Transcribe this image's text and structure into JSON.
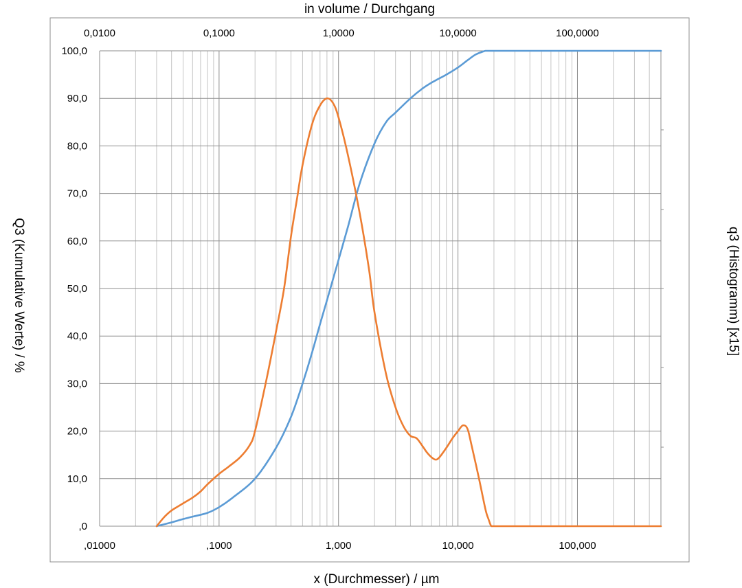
{
  "chart_data": {
    "type": "line",
    "title": "in volume / Durchgang",
    "xlabel": "x (Durchmesser) / µm",
    "ylabel": "Q3 (Kumulative Werte) / %",
    "y2label": "q3 (Histogramm) [x15]",
    "x_scale": "log",
    "xlim": [
      0.01,
      500
    ],
    "ylim": [
      0,
      100
    ],
    "grid": true,
    "legend": "none",
    "x_ticks": [
      0.01,
      0.1,
      1,
      10,
      100
    ],
    "x_tick_labels_bottom": [
      ",01000",
      ",1000",
      "1,000",
      "10,000",
      "100,000"
    ],
    "x_tick_labels_top": [
      "0,0100",
      "0,1000",
      "1,0000",
      "10,0000",
      "100,0000"
    ],
    "y_ticks": [
      0,
      10,
      20,
      30,
      40,
      50,
      60,
      70,
      80,
      90,
      100
    ],
    "y_tick_labels": [
      ",0",
      "10,0",
      "20,0",
      "30,0",
      "40,0",
      "50,0",
      "60,0",
      "70,0",
      "80,0",
      "90,0",
      "100,0"
    ],
    "colors": {
      "Q3": "#5b9bd5",
      "q3": "#ed7d31",
      "grid": "#8c8c8c"
    },
    "series": [
      {
        "key": "Q3",
        "axis": "left",
        "x": [
          0.03,
          0.04,
          0.05,
          0.06,
          0.08,
          0.1,
          0.13,
          0.2,
          0.3,
          0.4,
          0.5,
          0.6,
          0.7,
          0.8,
          0.9,
          1.0,
          1.2,
          1.5,
          2.0,
          2.5,
          3.0,
          4.0,
          5.0,
          6.0,
          8.0,
          10.0,
          12.0,
          14.0,
          16.0,
          17.0,
          18.0,
          20.0,
          30.0,
          50.0,
          100.0,
          200.0,
          500.0
        ],
        "values": [
          0,
          0.8,
          1.5,
          2.0,
          2.8,
          4.0,
          6.0,
          10.0,
          16.5,
          23.0,
          30.0,
          36.5,
          42.5,
          47.5,
          52.0,
          56.0,
          63.0,
          72.0,
          80.5,
          85.0,
          87.0,
          90.0,
          92.0,
          93.3,
          95.0,
          96.5,
          98.0,
          99.2,
          99.8,
          100.0,
          100.0,
          100.0,
          100.0,
          100.0,
          100.0,
          100.0,
          100.0
        ]
      },
      {
        "key": "q3",
        "axis": "left",
        "x": [
          0.03,
          0.035,
          0.04,
          0.05,
          0.06,
          0.07,
          0.08,
          0.1,
          0.12,
          0.15,
          0.18,
          0.2,
          0.25,
          0.3,
          0.35,
          0.4,
          0.45,
          0.5,
          0.6,
          0.7,
          0.8,
          0.9,
          1.0,
          1.2,
          1.5,
          1.8,
          2.0,
          2.5,
          3.0,
          3.5,
          4.0,
          4.5,
          5.0,
          5.5,
          6.0,
          6.5,
          7.0,
          8.0,
          9.0,
          10.0,
          11.0,
          12.0,
          13.0,
          15.0,
          17.0,
          18.0,
          19.0,
          20.0,
          30.0,
          50.0,
          100.0,
          200.0,
          500.0
        ],
        "values": [
          0,
          2.0,
          3.3,
          4.8,
          6.0,
          7.3,
          8.8,
          11.0,
          12.5,
          14.5,
          17.0,
          20.0,
          31.0,
          41.0,
          50.0,
          61.0,
          69.0,
          76.0,
          84.5,
          88.5,
          90.0,
          89.0,
          86.0,
          78.0,
          66.0,
          54.0,
          45.0,
          32.0,
          25.0,
          21.0,
          19.0,
          18.5,
          17.0,
          15.5,
          14.5,
          14.0,
          14.5,
          16.5,
          18.5,
          20.0,
          21.2,
          20.5,
          17.0,
          10.0,
          3.5,
          1.5,
          0.0,
          0.0,
          0.0,
          0.0,
          0.0,
          0.0,
          0.0
        ]
      }
    ]
  }
}
